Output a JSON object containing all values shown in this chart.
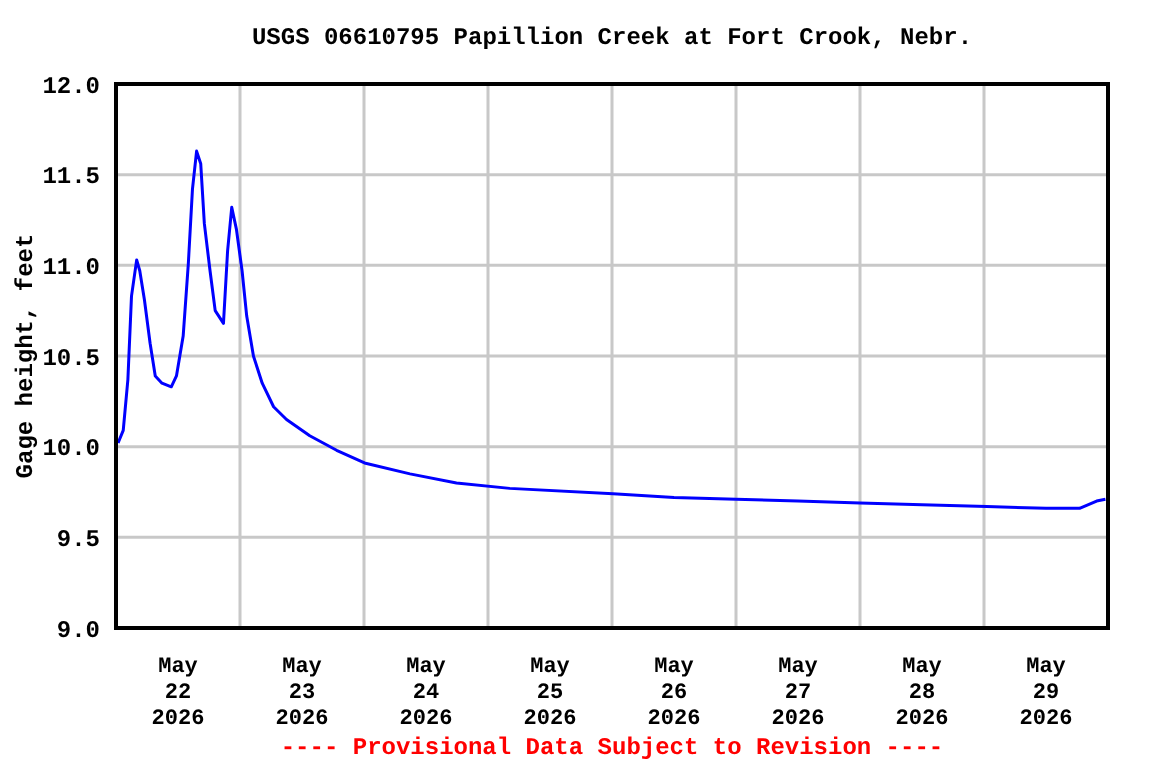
{
  "chart_data": {
    "type": "line",
    "title": "USGS 06610795 Papillion Creek at Fort Crook, Nebr.",
    "ylabel": "Gage height, feet",
    "annotations": [
      "---- Provisional Data Subject to Revision ----"
    ],
    "x": [
      "2026-05-22T00:24",
      "2026-05-22T01:24",
      "2026-05-22T02:18",
      "2026-05-22T03:00",
      "2026-05-22T04:00",
      "2026-05-22T04:36",
      "2026-05-22T05:30",
      "2026-05-22T06:36",
      "2026-05-22T07:36",
      "2026-05-22T08:54",
      "2026-05-22T10:42",
      "2026-05-22T11:42",
      "2026-05-22T13:00",
      "2026-05-22T14:00",
      "2026-05-22T14:48",
      "2026-05-22T15:36",
      "2026-05-22T16:24",
      "2026-05-22T17:06",
      "2026-05-22T18:12",
      "2026-05-22T19:12",
      "2026-05-22T20:48",
      "2026-05-22T21:36",
      "2026-05-22T22:24",
      "2026-05-22T23:18",
      "2026-05-23T00:24",
      "2026-05-23T01:18",
      "2026-05-23T02:36",
      "2026-05-23T04:18",
      "2026-05-23T06:30",
      "2026-05-23T09:00",
      "2026-05-23T13:30",
      "2026-05-23T18:42",
      "2026-05-24T00:06",
      "2026-05-24T08:54",
      "2026-05-24T17:54",
      "2026-05-25T04:12",
      "2026-05-26T00:12",
      "2026-05-26T12:00",
      "2026-05-27T00:00",
      "2026-05-27T12:00",
      "2026-05-28T00:00",
      "2026-05-28T12:00",
      "2026-05-29T00:30",
      "2026-05-29T12:00",
      "2026-05-29T18:30",
      "2026-05-29T21:48",
      "2026-05-29T23:30"
    ],
    "series": [
      {
        "color": "#0000ff",
        "values": [
          10.02,
          10.09,
          10.37,
          10.83,
          11.03,
          10.97,
          10.81,
          10.57,
          10.39,
          10.35,
          10.33,
          10.39,
          10.61,
          11.01,
          11.42,
          11.63,
          11.56,
          11.23,
          10.97,
          10.75,
          10.68,
          11.08,
          11.32,
          11.2,
          10.97,
          10.72,
          10.5,
          10.35,
          10.22,
          10.15,
          10.06,
          9.98,
          9.91,
          9.85,
          9.8,
          9.77,
          9.74,
          9.72,
          9.71,
          9.7,
          9.69,
          9.68,
          9.67,
          9.66,
          9.66,
          9.7,
          9.71
        ]
      }
    ],
    "xlim": [
      "2026-05-22T00:00",
      "2026-05-30T00:00"
    ],
    "xticks": [
      {
        "value": "2026-05-22T00:00",
        "label": null
      },
      {
        "value": "2026-05-22T12:00",
        "label": "May\n22\n2026"
      },
      {
        "value": "2026-05-23T00:00",
        "label": null
      },
      {
        "value": "2026-05-23T12:00",
        "label": "May\n23\n2026"
      },
      {
        "value": "2026-05-24T00:00",
        "label": null
      },
      {
        "value": "2026-05-24T12:00",
        "label": "May\n24\n2026"
      },
      {
        "value": "2026-05-25T00:00",
        "label": null
      },
      {
        "value": "2026-05-25T12:00",
        "label": "May\n25\n2026"
      },
      {
        "value": "2026-05-26T00:00",
        "label": null
      },
      {
        "value": "2026-05-26T12:00",
        "label": "May\n26\n2026"
      },
      {
        "value": "2026-05-27T00:00",
        "label": null
      },
      {
        "value": "2026-05-27T12:00",
        "label": "May\n27\n2026"
      },
      {
        "value": "2026-05-28T00:00",
        "label": null
      },
      {
        "value": "2026-05-28T12:00",
        "label": "May\n28\n2026"
      },
      {
        "value": "2026-05-29T00:00",
        "label": null
      },
      {
        "value": "2026-05-29T12:00",
        "label": "May\n29\n2026"
      },
      {
        "value": "2026-05-30T00:00",
        "label": null
      }
    ],
    "ylim": [
      9,
      12
    ],
    "yticks": [
      {
        "value": 9,
        "label": "9.0"
      },
      {
        "value": 9.5,
        "label": "9.5"
      },
      {
        "value": 10,
        "label": "10.0"
      },
      {
        "value": 10.5,
        "label": "10.5"
      },
      {
        "value": 11,
        "label": "11.0"
      },
      {
        "value": 11.5,
        "label": "11.5"
      },
      {
        "value": 12,
        "label": "12.0"
      }
    ],
    "grid": true,
    "line_style": "solid"
  }
}
